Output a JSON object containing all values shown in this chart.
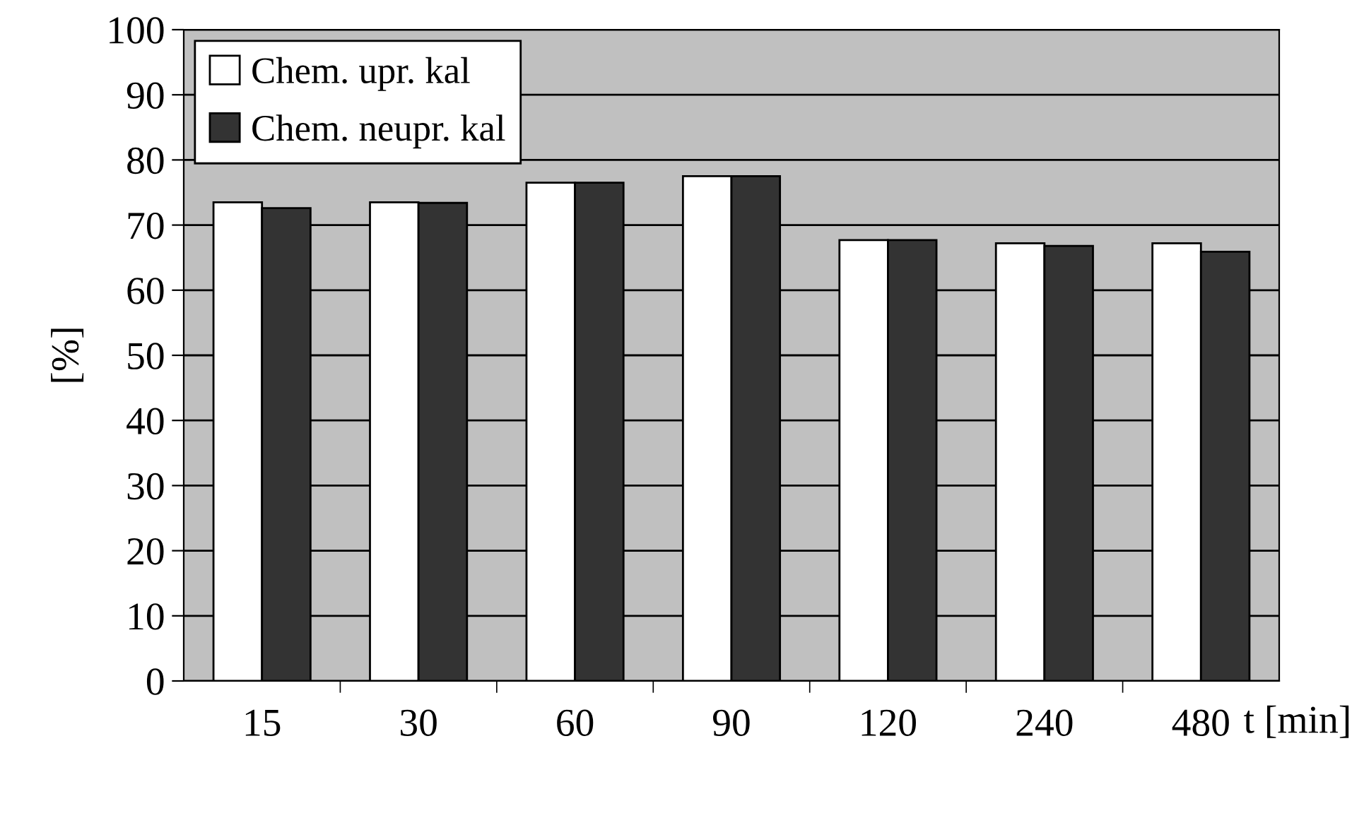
{
  "chart_data": {
    "type": "bar",
    "xlabel": "t [min]",
    "ylabel": "[%]",
    "categories": [
      "15",
      "30",
      "60",
      "90",
      "120",
      "240",
      "480"
    ],
    "series": [
      {
        "name": "Chem. upr. kal",
        "color": "#ffffff",
        "values": [
          73.5,
          73.5,
          76.5,
          77.5,
          67.7,
          67.2,
          67.2
        ]
      },
      {
        "name": "Chem. neupr. kal",
        "color": "#333333",
        "values": [
          72.6,
          73.4,
          76.5,
          77.5,
          67.7,
          66.8,
          65.9
        ]
      }
    ],
    "ylim": [
      0,
      100
    ],
    "yticks": [
      0,
      10,
      20,
      30,
      40,
      50,
      60,
      70,
      80,
      90,
      100
    ],
    "grid": "y",
    "legend": "top left"
  }
}
